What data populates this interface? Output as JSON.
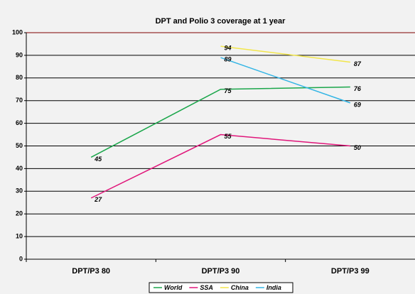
{
  "chart_data": {
    "type": "line",
    "title": "DPT and Polio 3 coverage at 1 year",
    "categories": [
      "DPT/P3 80",
      "DPT/P3 90",
      "DPT/P3 99"
    ],
    "series": [
      {
        "name": "World",
        "color": "#1aa64a",
        "values": [
          45,
          75,
          76
        ]
      },
      {
        "name": "SSA",
        "color": "#e0167a",
        "values": [
          27,
          55,
          50
        ]
      },
      {
        "name": "China",
        "color": "#f2e64a",
        "values": [
          null,
          94,
          87
        ]
      },
      {
        "name": "India",
        "color": "#33b5e5",
        "values": [
          null,
          89,
          69
        ]
      }
    ],
    "ylim": [
      0,
      100
    ],
    "yticks": [
      0,
      10,
      20,
      30,
      40,
      50,
      60,
      70,
      80,
      90,
      100
    ],
    "grid": true,
    "legend": "bottom"
  }
}
